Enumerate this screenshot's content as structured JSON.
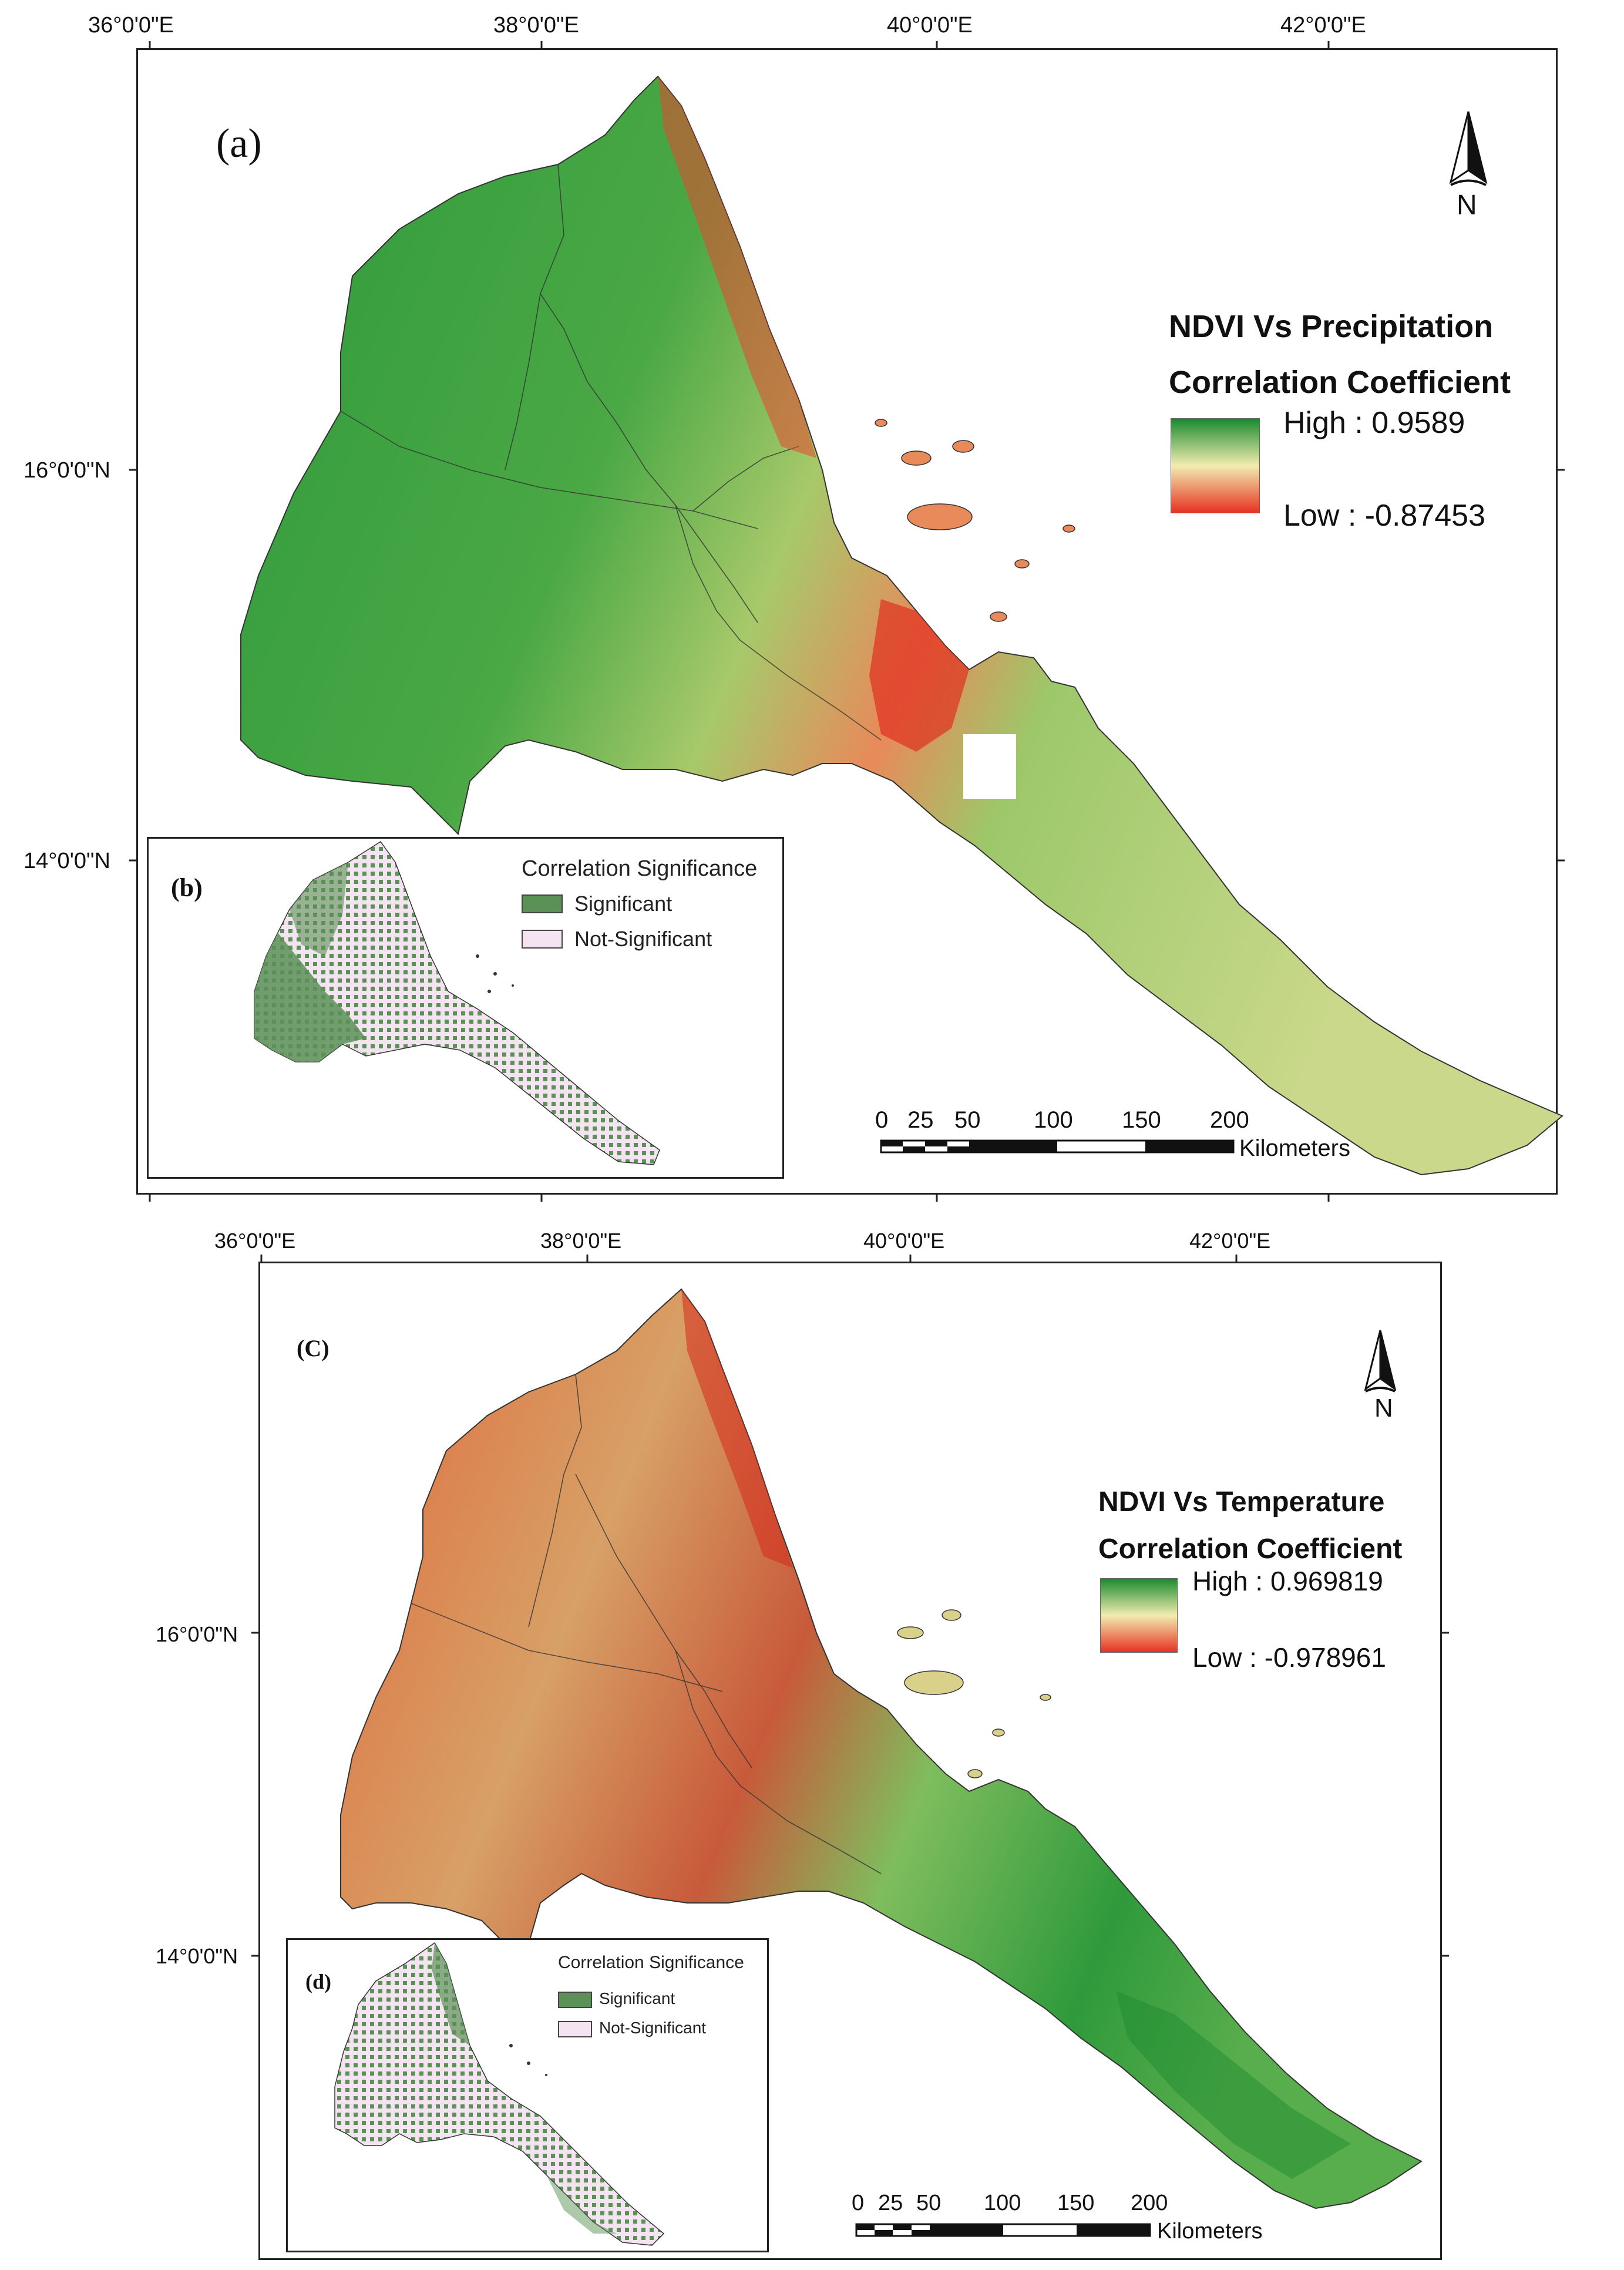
{
  "colors": {
    "high": "#1a8a2e",
    "mid": "#f2ecb0",
    "low": "#e63222",
    "significant": "#5b9157",
    "not_significant": "#f4e4f1",
    "boundary": "#333333"
  },
  "panel_top": {
    "lon_ticks": [
      "36°0'0\"E",
      "38°0'0\"E",
      "40°0'0\"E",
      "42°0'0\"E"
    ],
    "lat_ticks": [
      "16°0'0\"N",
      "14°0'0\"N"
    ],
    "panel_label": "(a)",
    "north_label": "N",
    "legend": {
      "title_line1": "NDVI Vs Precipitation",
      "title_line2": "Correlation Coefficient",
      "high": "High : 0.9589",
      "low": "Low : -0.87453"
    },
    "inset": {
      "label": "(b)",
      "title": "Correlation Significance",
      "item_significant": "Significant",
      "item_not_significant": "Not-Significant"
    },
    "scale": {
      "ticks": [
        "0",
        "25",
        "50",
        "100",
        "150",
        "200"
      ],
      "unit": "Kilometers"
    }
  },
  "panel_bottom": {
    "lon_ticks": [
      "36°0'0\"E",
      "38°0'0\"E",
      "40°0'0\"E",
      "42°0'0\"E"
    ],
    "lat_ticks": [
      "16°0'0\"N",
      "14°0'0\"N"
    ],
    "panel_label": "(C)",
    "north_label": "N",
    "legend": {
      "title_line1": "NDVI Vs Temperature",
      "title_line2": "Correlation Coefficient",
      "high": "High : 0.969819",
      "low": "Low : -0.978961"
    },
    "inset": {
      "label": "(d)",
      "title": "Correlation Significance",
      "item_significant": "Significant",
      "item_not_significant": "Not-Significant"
    },
    "scale": {
      "ticks": [
        "0",
        "25",
        "50",
        "100",
        "150",
        "200"
      ],
      "unit": "Kilometers"
    }
  }
}
